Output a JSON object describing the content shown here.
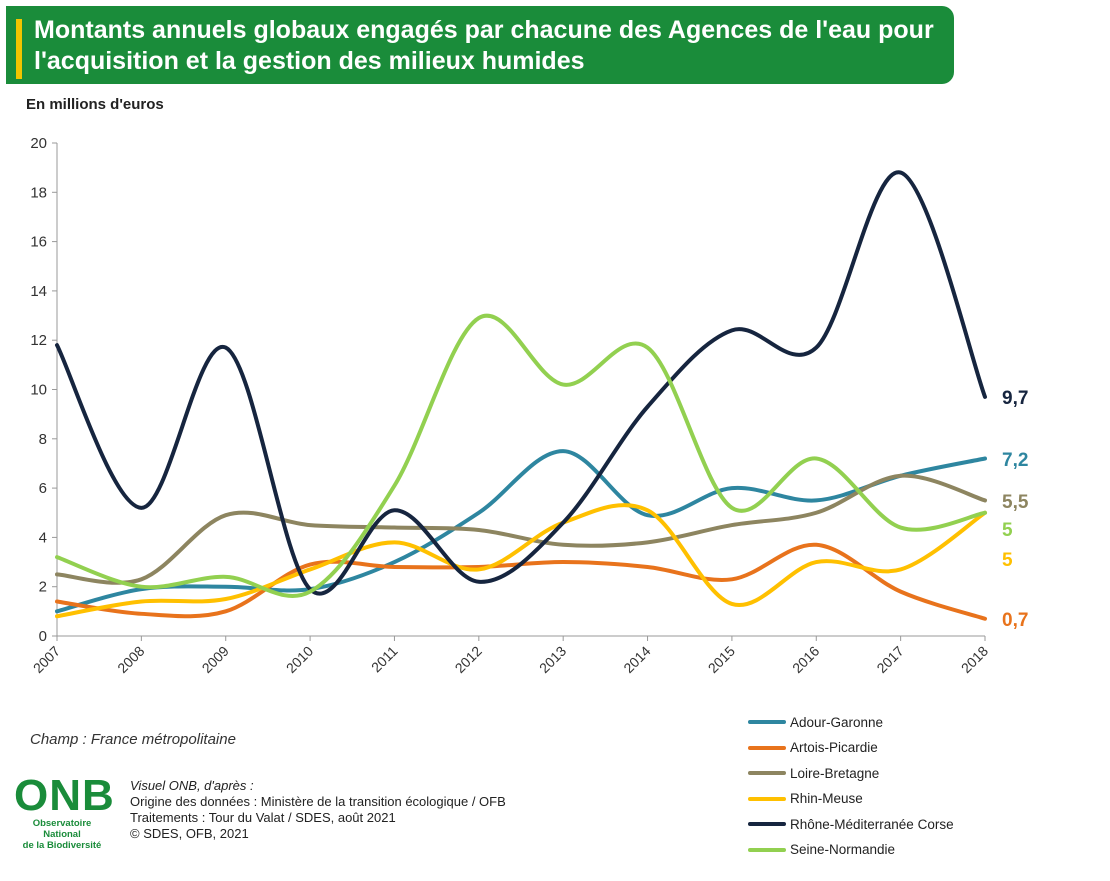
{
  "title": "Montants annuels globaux engagés par chacune des Agences de l'eau pour l'acquisition et la gestion des milieux humides",
  "unit_label": "En millions d'euros",
  "scope_note": "Champ : France métropolitaine",
  "logo": {
    "main": "ONB",
    "sub_line1": "Observatoire National",
    "sub_line2": "de la Biodiversité"
  },
  "source": {
    "line1": "Visuel ONB, d'après :",
    "line2": "Origine des données : Ministère de la transition écologique / OFB",
    "line3": "Traitements : Tour du Valat / SDES, août 2021",
    "line4": "©  SDES, OFB, 2021"
  },
  "colors": {
    "banner": "#1a8c3a",
    "accent": "#f2c500"
  },
  "chart_data": {
    "type": "line",
    "x": [
      "2007",
      "2008",
      "2009",
      "2010",
      "2011",
      "2012",
      "2013",
      "2014",
      "2015",
      "2016",
      "2017",
      "2018"
    ],
    "ylim": [
      0,
      20
    ],
    "yticks": [
      "0",
      "2",
      "4",
      "6",
      "8",
      "10",
      "12",
      "14",
      "16",
      "18",
      "20"
    ],
    "grid": false,
    "legend_position": "bottom-right",
    "series": [
      {
        "name": "Adour-Garonne",
        "color": "#2e86a0",
        "values": [
          1.0,
          1.9,
          2.0,
          1.9,
          3.0,
          5.0,
          7.5,
          4.9,
          6.0,
          5.5,
          6.5,
          7.2
        ],
        "end_label": "7,2"
      },
      {
        "name": "Artois-Picardie",
        "color": "#e8731c",
        "values": [
          1.4,
          0.9,
          1.0,
          2.9,
          2.8,
          2.8,
          3.0,
          2.8,
          2.3,
          3.7,
          1.8,
          0.7
        ],
        "end_label": "0,7"
      },
      {
        "name": "Loire-Bretagne",
        "color": "#8d8560",
        "values": [
          2.5,
          2.3,
          4.9,
          4.5,
          4.4,
          4.3,
          3.7,
          3.8,
          4.5,
          5.0,
          6.5,
          5.5
        ],
        "end_label": "5,5"
      },
      {
        "name": "Rhin-Meuse",
        "color": "#ffc000",
        "values": [
          0.8,
          1.4,
          1.5,
          2.7,
          3.8,
          2.7,
          4.6,
          5.1,
          1.3,
          3.0,
          2.7,
          5.0
        ],
        "end_label": "5"
      },
      {
        "name": "Rhône-Méditerranée Corse",
        "color": "#16253f",
        "values": [
          11.8,
          5.2,
          11.7,
          1.9,
          5.1,
          2.2,
          4.6,
          9.3,
          12.4,
          11.7,
          18.8,
          9.7
        ],
        "end_label": "9,7"
      },
      {
        "name": "Seine-Normandie",
        "color": "#92d050",
        "values": [
          3.2,
          2.0,
          2.4,
          1.8,
          6.1,
          12.9,
          10.2,
          11.7,
          5.2,
          7.2,
          4.4,
          5.0
        ],
        "end_label": "5"
      }
    ]
  }
}
